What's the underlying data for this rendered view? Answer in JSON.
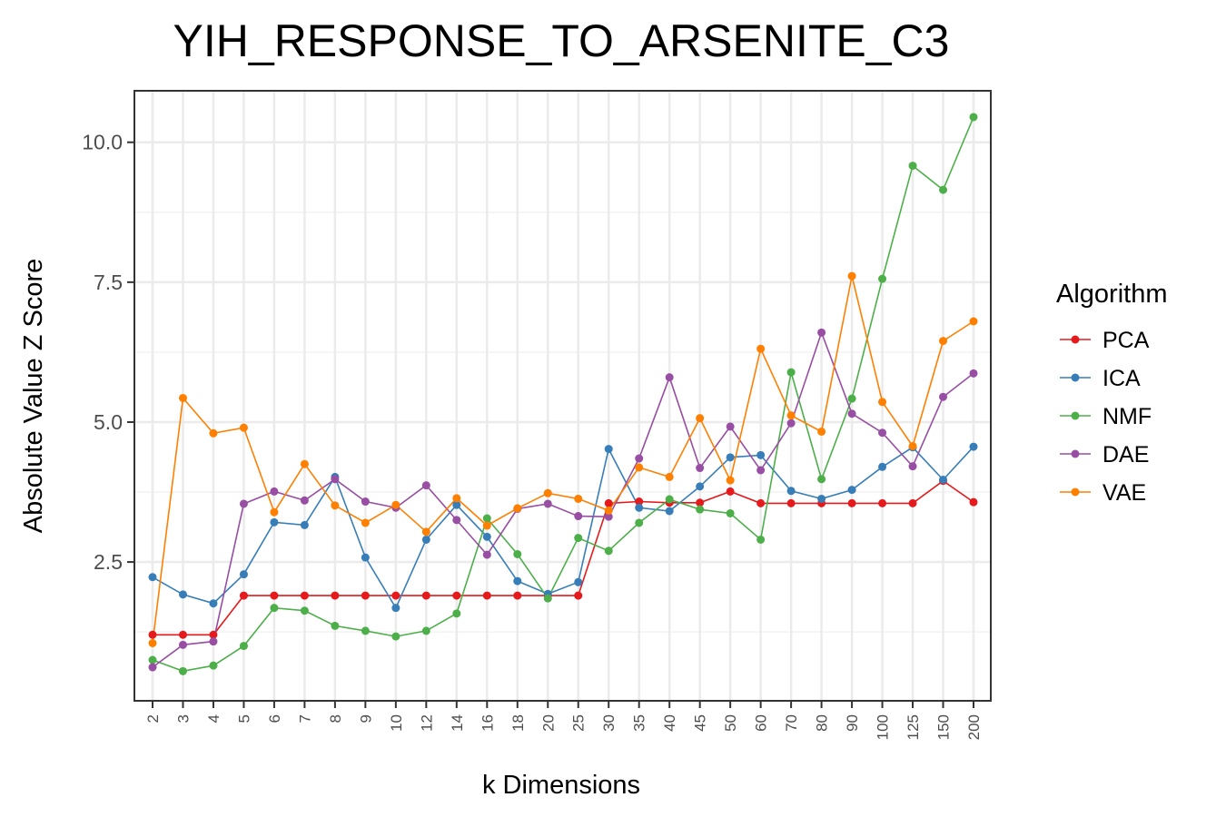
{
  "chart_data": {
    "type": "line",
    "title": "YIH_RESPONSE_TO_ARSENITE_C3",
    "xlabel": "k Dimensions",
    "ylabel": "Absolute Value Z Score",
    "categories": [
      "2",
      "3",
      "4",
      "5",
      "6",
      "7",
      "8",
      "9",
      "10",
      "12",
      "14",
      "16",
      "18",
      "20",
      "25",
      "30",
      "35",
      "40",
      "45",
      "50",
      "60",
      "70",
      "80",
      "90",
      "100",
      "125",
      "150",
      "200"
    ],
    "ylim": [
      0.02,
      10.92
    ],
    "yticks": [
      2.5,
      5.0,
      7.5,
      10.0
    ],
    "ytick_labels": [
      "2.5",
      "5.0",
      "7.5",
      "10.0"
    ],
    "grid": true,
    "legend": {
      "title": "Algorithm",
      "position": "right"
    },
    "series": [
      {
        "name": "PCA",
        "color": "#e41a1c",
        "values": [
          1.2,
          1.2,
          1.2,
          1.9,
          1.9,
          1.9,
          1.9,
          1.9,
          1.9,
          1.9,
          1.9,
          1.9,
          1.9,
          1.9,
          1.9,
          3.55,
          3.58,
          3.56,
          3.56,
          3.76,
          3.55,
          3.55,
          3.55,
          3.55,
          3.55,
          3.55,
          3.95,
          3.57
        ]
      },
      {
        "name": "ICA",
        "color": "#377eb8",
        "values": [
          2.23,
          1.92,
          1.76,
          2.28,
          3.21,
          3.16,
          4.02,
          2.58,
          1.68,
          2.9,
          3.52,
          2.95,
          2.16,
          1.93,
          2.14,
          4.52,
          3.47,
          3.41,
          3.85,
          4.37,
          4.41,
          3.77,
          3.63,
          3.79,
          4.2,
          4.55,
          3.97,
          4.56
        ]
      },
      {
        "name": "NMF",
        "color": "#4daf4a",
        "values": [
          0.75,
          0.55,
          0.65,
          1.0,
          1.68,
          1.63,
          1.36,
          1.27,
          1.17,
          1.27,
          1.58,
          3.28,
          2.64,
          1.85,
          2.93,
          2.7,
          3.2,
          3.62,
          3.44,
          3.37,
          2.9,
          5.89,
          3.98,
          5.42,
          7.56,
          9.58,
          9.15,
          10.45
        ]
      },
      {
        "name": "DAE",
        "color": "#984ea3",
        "values": [
          0.62,
          1.02,
          1.08,
          3.54,
          3.76,
          3.6,
          3.98,
          3.58,
          3.47,
          3.87,
          3.25,
          2.63,
          3.45,
          3.54,
          3.32,
          3.31,
          4.35,
          5.8,
          4.18,
          4.92,
          4.14,
          4.98,
          6.6,
          5.15,
          4.81,
          4.21,
          5.45,
          5.87
        ]
      },
      {
        "name": "VAE",
        "color": "#ff7f00",
        "values": [
          1.05,
          5.43,
          4.8,
          4.9,
          3.39,
          4.25,
          3.51,
          3.2,
          3.52,
          3.04,
          3.64,
          3.15,
          3.46,
          3.73,
          3.63,
          3.42,
          4.19,
          4.02,
          5.07,
          3.96,
          6.31,
          5.12,
          4.83,
          7.61,
          5.36,
          4.57,
          6.45,
          6.8
        ]
      }
    ]
  }
}
